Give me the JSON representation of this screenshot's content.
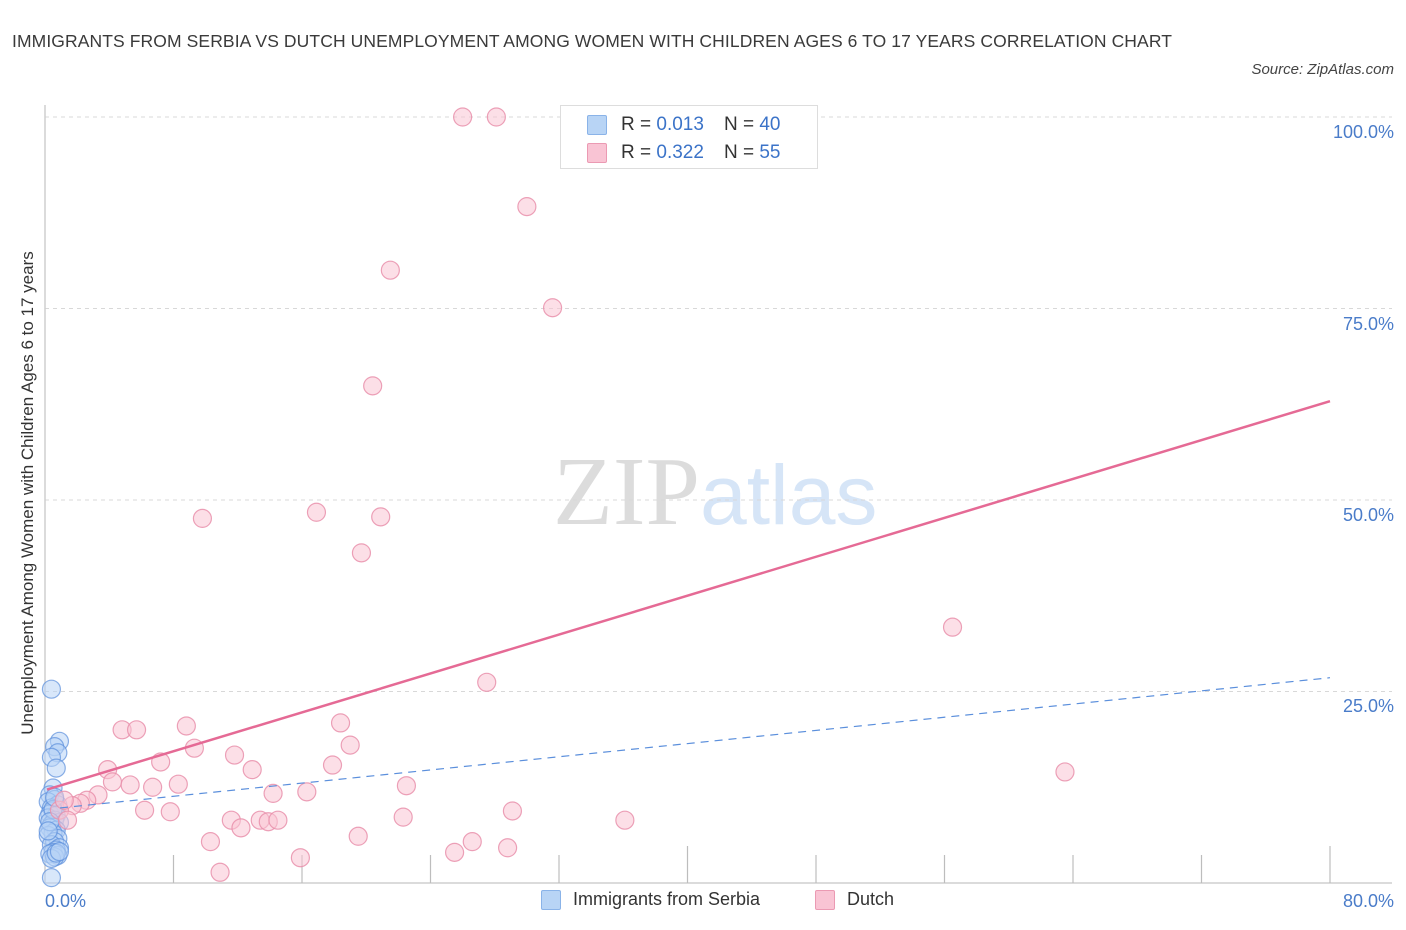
{
  "header": {
    "title": "IMMIGRANTS FROM SERBIA VS DUTCH UNEMPLOYMENT AMONG WOMEN WITH CHILDREN AGES 6 TO 17 YEARS CORRELATION CHART",
    "source": "Source: ZipAtlas.com"
  },
  "watermark": {
    "zip": "ZIP",
    "atlas": "atlas"
  },
  "legend_stats": {
    "r_label": "R =",
    "n_label": "N =",
    "series": [
      {
        "name": "Immigrants from Serbia",
        "r": "0.013",
        "n": "40"
      },
      {
        "name": "Dutch",
        "r": "0.322",
        "n": "55"
      }
    ]
  },
  "axes": {
    "ylabel": "Unemployment Among Women with Children Ages 6 to 17 years",
    "yticks": [
      "100.0%",
      "75.0%",
      "50.0%",
      "25.0%"
    ],
    "xticks": [
      "0.0%",
      "80.0%"
    ]
  },
  "colors": {
    "blue_fill": "#b8d4f5",
    "blue_stroke": "#5b8fdc",
    "pink_fill": "#f9c4d4",
    "pink_stroke": "#e990ac",
    "pink_line": "#e56a95",
    "blue_line": "#5b8fdc",
    "tick_label": "#4a7cc9"
  },
  "chart_data": {
    "type": "scatter",
    "title": "IMMIGRANTS FROM SERBIA VS DUTCH UNEMPLOYMENT AMONG WOMEN WITH CHILDREN AGES 6 TO 17 YEARS CORRELATION CHART",
    "xlabel": "",
    "ylabel": "Unemployment Among Women with Children Ages 6 to 17 years",
    "xlim": [
      0,
      80
    ],
    "ylim": [
      0,
      100
    ],
    "grid": true,
    "legend_position": "bottom",
    "series": [
      {
        "name": "Immigrants from Serbia",
        "r": 0.013,
        "n": 40,
        "trend": {
          "x": [
            0,
            80
          ],
          "y": [
            9.5,
            26.8
          ],
          "style": "dashed"
        },
        "points": [
          [
            0.4,
            25.3
          ],
          [
            0.9,
            18.5
          ],
          [
            0.6,
            17.8
          ],
          [
            0.8,
            17.0
          ],
          [
            0.4,
            16.4
          ],
          [
            0.7,
            15.0
          ],
          [
            0.5,
            12.4
          ],
          [
            0.3,
            11.5
          ],
          [
            0.6,
            10.9
          ],
          [
            0.2,
            10.6
          ],
          [
            0.8,
            10.2
          ],
          [
            0.4,
            9.8
          ],
          [
            0.5,
            9.4
          ],
          [
            0.3,
            9.0
          ],
          [
            0.7,
            8.8
          ],
          [
            0.2,
            8.5
          ],
          [
            0.6,
            8.2
          ],
          [
            0.9,
            7.9
          ],
          [
            0.4,
            7.6
          ],
          [
            0.3,
            7.2
          ],
          [
            0.7,
            6.9
          ],
          [
            0.5,
            6.5
          ],
          [
            0.2,
            6.2
          ],
          [
            0.8,
            5.8
          ],
          [
            0.6,
            5.4
          ],
          [
            0.4,
            5.0
          ],
          [
            0.9,
            4.6
          ],
          [
            0.7,
            4.3
          ],
          [
            0.5,
            4.0
          ],
          [
            0.3,
            3.8
          ],
          [
            0.8,
            3.6
          ],
          [
            0.6,
            3.4
          ],
          [
            0.4,
            3.2
          ],
          [
            0.7,
            3.9
          ],
          [
            0.9,
            4.1
          ],
          [
            0.5,
            9.6
          ],
          [
            0.3,
            8.0
          ],
          [
            0.6,
            11.2
          ],
          [
            0.2,
            6.8
          ],
          [
            0.4,
            0.7
          ]
        ]
      },
      {
        "name": "Dutch",
        "r": 0.322,
        "n": 55,
        "trend": {
          "x": [
            0,
            80
          ],
          "y": [
            12.2,
            62.9
          ],
          "style": "solid"
        },
        "points": [
          [
            26.0,
            100.0
          ],
          [
            28.1,
            100.0
          ],
          [
            30.0,
            88.3
          ],
          [
            21.5,
            80.0
          ],
          [
            31.6,
            75.1
          ],
          [
            20.4,
            64.9
          ],
          [
            9.8,
            47.6
          ],
          [
            16.9,
            48.4
          ],
          [
            20.9,
            47.8
          ],
          [
            19.7,
            43.1
          ],
          [
            27.5,
            26.2
          ],
          [
            56.5,
            33.4
          ],
          [
            63.5,
            14.5
          ],
          [
            36.1,
            8.2
          ],
          [
            4.8,
            20.0
          ],
          [
            5.7,
            20.0
          ],
          [
            8.8,
            20.5
          ],
          [
            9.3,
            17.6
          ],
          [
            7.2,
            15.8
          ],
          [
            11.8,
            16.7
          ],
          [
            12.9,
            14.8
          ],
          [
            17.9,
            15.4
          ],
          [
            19.0,
            18.0
          ],
          [
            18.4,
            20.9
          ],
          [
            3.9,
            14.8
          ],
          [
            4.2,
            13.2
          ],
          [
            5.3,
            12.8
          ],
          [
            6.7,
            12.5
          ],
          [
            8.3,
            12.9
          ],
          [
            14.2,
            11.7
          ],
          [
            16.3,
            11.9
          ],
          [
            3.3,
            11.5
          ],
          [
            2.6,
            10.8
          ],
          [
            2.2,
            10.4
          ],
          [
            1.7,
            10.1
          ],
          [
            6.2,
            9.5
          ],
          [
            7.8,
            9.3
          ],
          [
            11.6,
            8.2
          ],
          [
            12.2,
            7.2
          ],
          [
            13.4,
            8.2
          ],
          [
            13.9,
            8.0
          ],
          [
            14.5,
            8.2
          ],
          [
            10.3,
            5.4
          ],
          [
            10.9,
            1.4
          ],
          [
            15.9,
            3.3
          ],
          [
            19.5,
            6.1
          ],
          [
            22.5,
            12.7
          ],
          [
            22.3,
            8.6
          ],
          [
            29.1,
            9.4
          ],
          [
            25.5,
            4.0
          ],
          [
            26.6,
            5.4
          ],
          [
            28.8,
            4.6
          ],
          [
            0.9,
            9.5
          ],
          [
            1.4,
            8.2
          ],
          [
            1.2,
            10.8
          ]
        ]
      }
    ]
  }
}
